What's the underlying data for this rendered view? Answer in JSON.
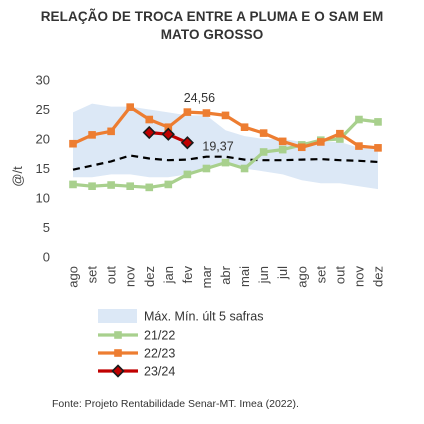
{
  "title_line1": "RELAÇÃO DE TROCA ENTRE A PLUMA E O SAM EM",
  "title_line2": "MATO GROSSO",
  "source": "Fonte: Projeto Rentabilidade Senar-MT. Imea (2022).",
  "colors": {
    "band": "#dce8f6",
    "mean": "#000000",
    "s2122": "#a8d08d",
    "s2223": "#ed7d31",
    "s2324": "#c00000"
  },
  "chart_data": {
    "type": "line",
    "title": "RELAÇÃO DE TROCA ENTRE A PLUMA E O SAM EM MATO GROSSO",
    "ylabel": "@/t",
    "xlabel": "",
    "ylim": [
      0,
      30
    ],
    "yticks": [
      "0",
      "5",
      "10",
      "15",
      "20",
      "25",
      "30"
    ],
    "categories": [
      "ago",
      "set",
      "out",
      "nov",
      "dez",
      "jan",
      "fev",
      "mar",
      "abr",
      "mai",
      "jun",
      "jul",
      "ago",
      "set",
      "out",
      "nov",
      "dez"
    ],
    "band": {
      "name": "Máx. Mín. últ 5 safras",
      "upper": [
        24.5,
        26.0,
        25.5,
        25.5,
        25.0,
        24.5,
        24.0,
        24.0,
        21.5,
        20.5,
        20.0,
        20.0,
        19.5,
        19.5,
        19.5,
        18.5,
        18.5
      ],
      "lower": [
        13.5,
        13.5,
        14.0,
        14.0,
        13.5,
        13.5,
        14.0,
        15.0,
        16.0,
        15.0,
        14.5,
        14.0,
        13.0,
        12.5,
        12.5,
        12.0,
        11.5
      ]
    },
    "mean": [
      14.8,
      15.5,
      16.2,
      17.2,
      16.7,
      16.4,
      16.5,
      17.0,
      17.0,
      16.5,
      16.4,
      16.4,
      16.5,
      16.6,
      16.4,
      16.3,
      16.1
    ],
    "series": [
      {
        "name": "21/22",
        "values": [
          12.3,
          12.0,
          12.2,
          12.0,
          11.8,
          12.3,
          14.0,
          15.0,
          16.0,
          15.0,
          17.8,
          18.2,
          19.0,
          19.8,
          20.0,
          23.3,
          22.9
        ]
      },
      {
        "name": "22/23",
        "values": [
          19.2,
          20.7,
          21.3,
          25.4,
          23.3,
          22.0,
          24.56,
          24.4,
          24.0,
          22.0,
          21.0,
          19.6,
          18.6,
          19.5,
          20.9,
          18.8,
          18.5
        ]
      },
      {
        "name": "23/24",
        "values": [
          null,
          null,
          null,
          null,
          21.1,
          20.8,
          19.37,
          null,
          null,
          null,
          null,
          null,
          null,
          null,
          null,
          null,
          null
        ]
      }
    ],
    "annotations": [
      {
        "text": "24,56",
        "category_index": 6,
        "value": 24.56,
        "series": "22/23"
      },
      {
        "text": "19,37",
        "category_index": 6,
        "value": 19.37,
        "series": "23/24"
      }
    ],
    "legend_position": "bottom-left"
  }
}
